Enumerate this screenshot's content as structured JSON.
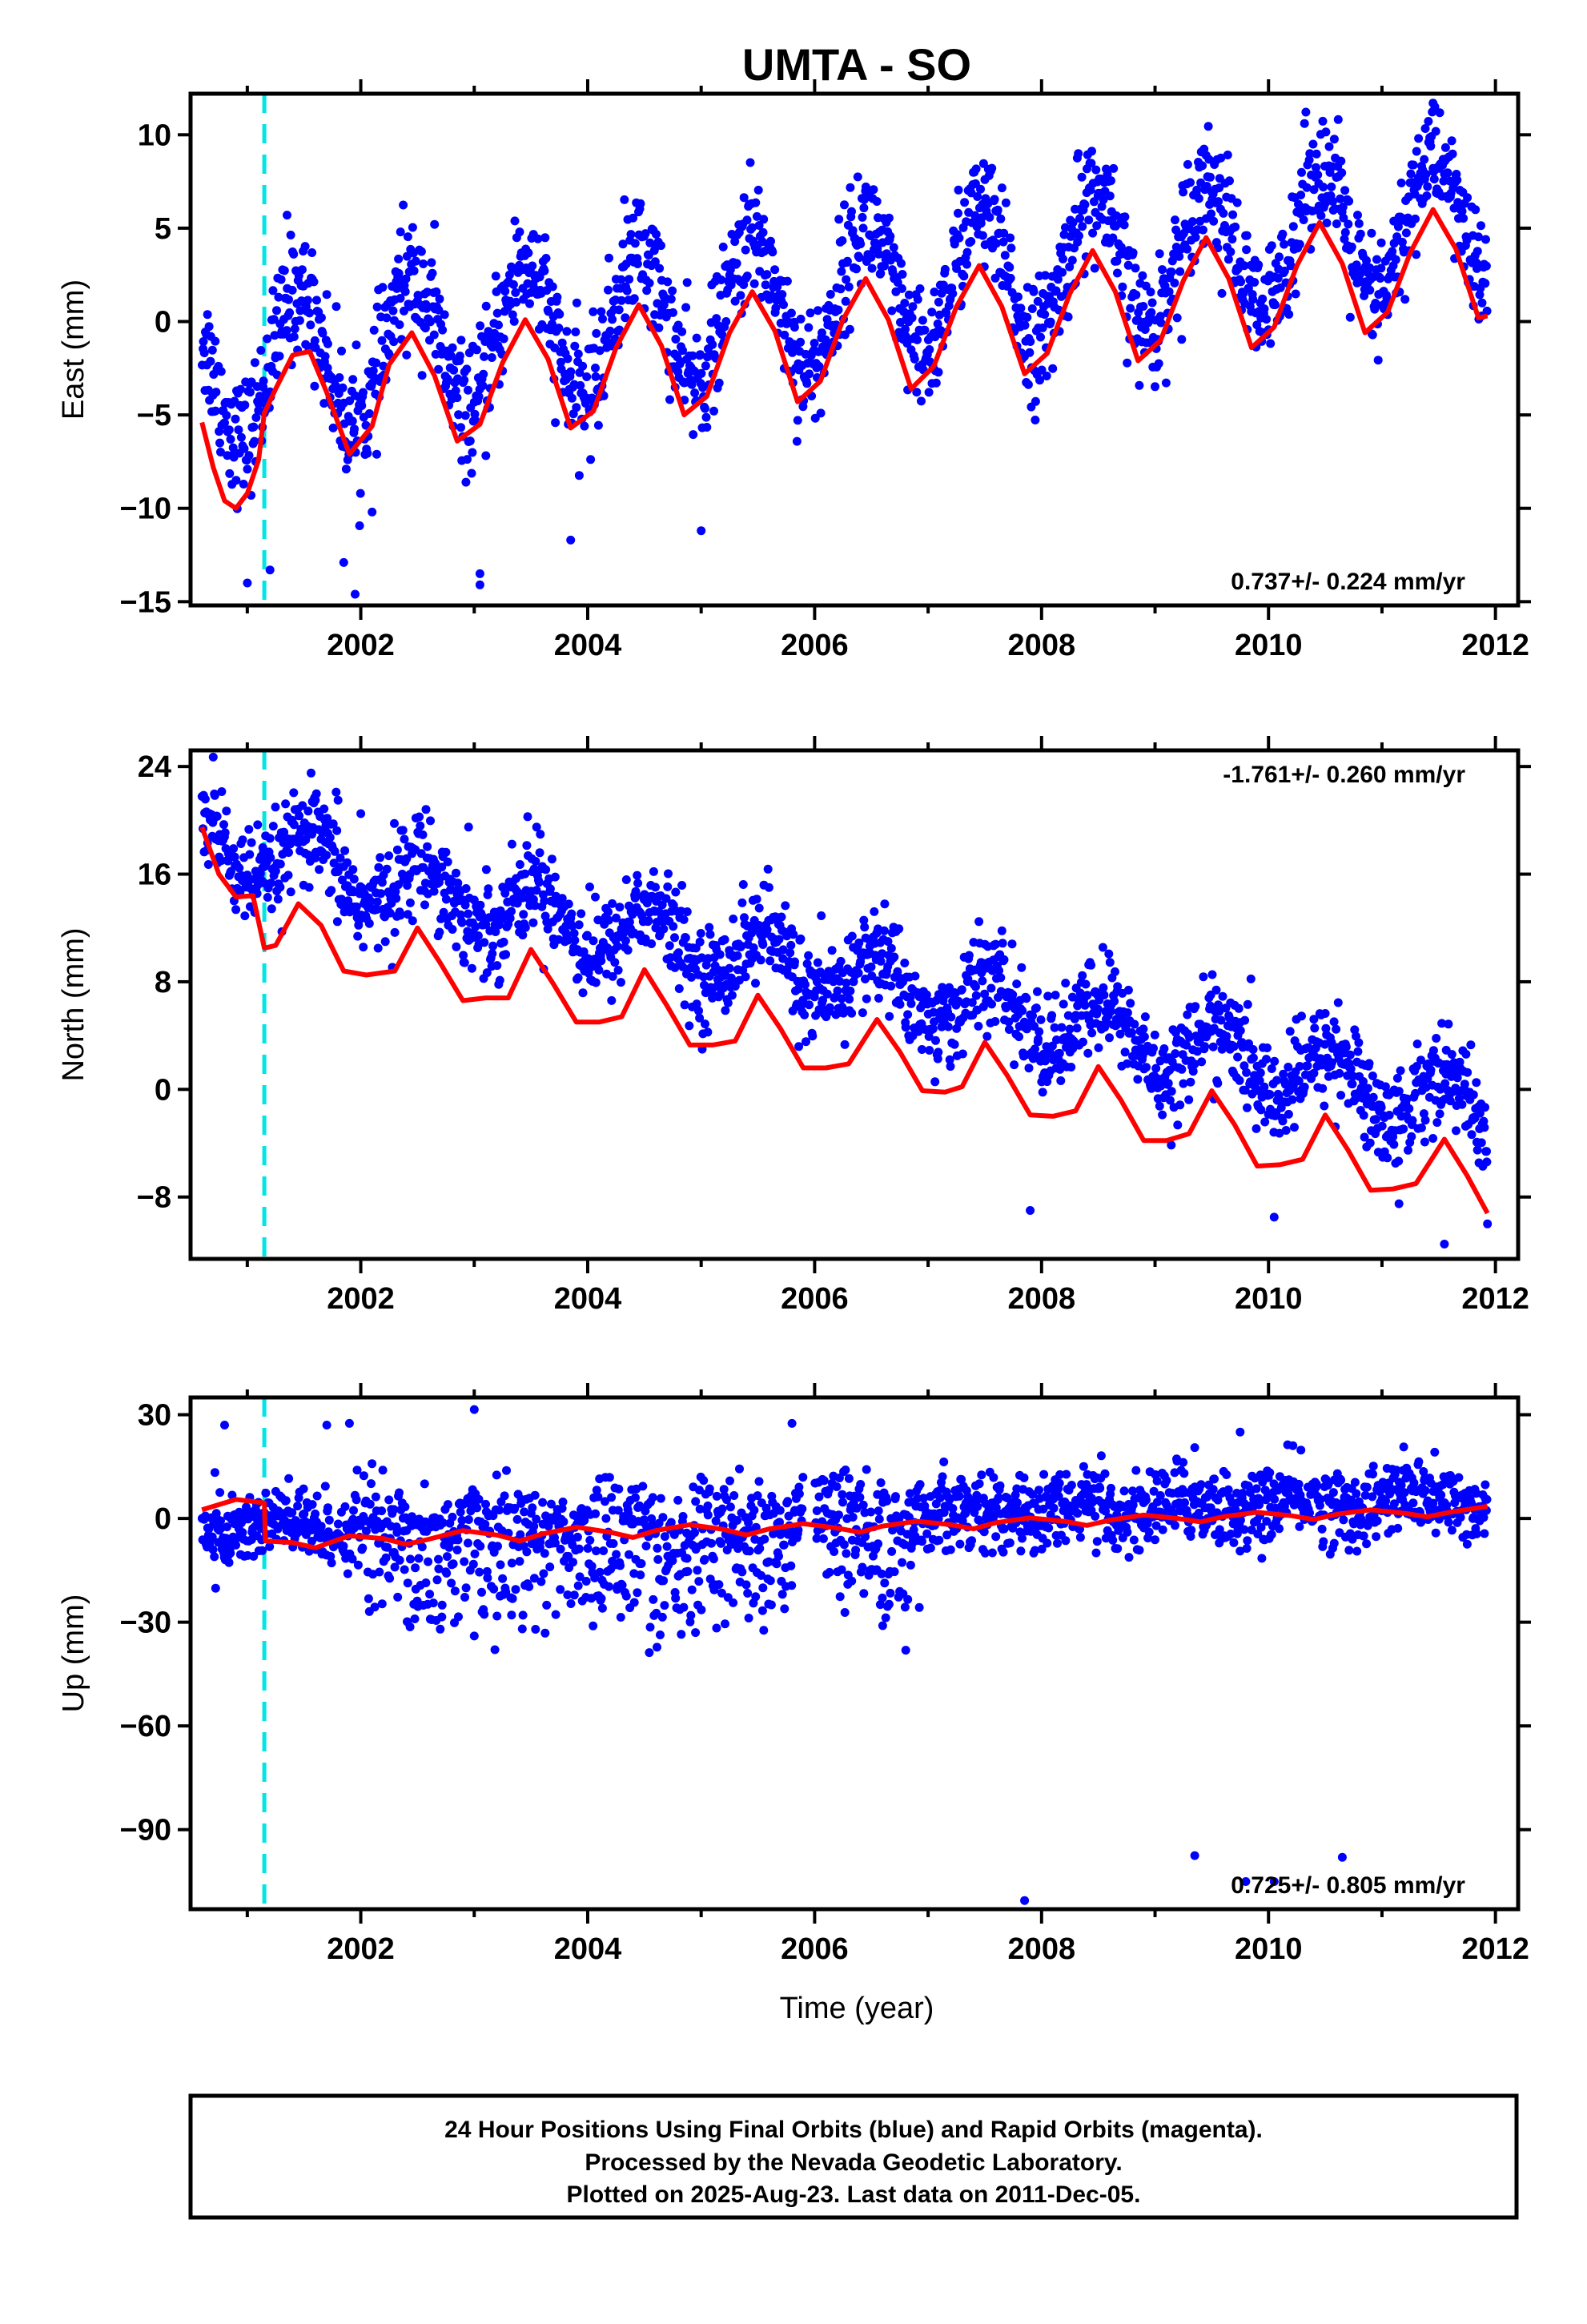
{
  "chart_data": {
    "type": "scatter",
    "title": "UMTA - SO",
    "xlabel": "Time (year)",
    "x_ticks": [
      "2002",
      "2004",
      "2006",
      "2008",
      "2010",
      "2012"
    ],
    "xlim": [
      2000.5,
      2012.2
    ],
    "event_line_x": 2001.15,
    "colors": {
      "points": "#0000ff",
      "fit": "#ff0000",
      "event": "#00e5e5"
    },
    "panels": [
      {
        "ylabel": "East (mm)",
        "ylim": [
          -15.2,
          12.2
        ],
        "y_ticks": [
          "10",
          "5",
          "0",
          "−5",
          "−10",
          "−15"
        ],
        "y_tick_values": [
          10,
          5,
          0,
          -5,
          -10,
          -15
        ],
        "rate_label": "0.737+/- 0.224 mm/yr",
        "rate_pos": "bottom-right",
        "fit_x": [
          2000.6,
          2000.7,
          2000.8,
          2000.9,
          2001.0,
          2001.1,
          2001.15,
          2001.25,
          2001.4,
          2001.55,
          2001.7,
          2001.9,
          2002.1,
          2002.25,
          2002.45,
          2002.65,
          2002.85,
          2003.05,
          2003.25,
          2003.45,
          2003.65,
          2003.85,
          2004.05,
          2004.25,
          2004.45,
          2004.65,
          2004.85,
          2005.05,
          2005.25,
          2005.45,
          2005.65,
          2005.85,
          2006.05,
          2006.25,
          2006.45,
          2006.65,
          2006.85,
          2007.05,
          2007.25,
          2007.45,
          2007.65,
          2007.85,
          2008.05,
          2008.25,
          2008.45,
          2008.65,
          2008.85,
          2009.05,
          2009.25,
          2009.45,
          2009.65,
          2009.85,
          2010.05,
          2010.25,
          2010.45,
          2010.65,
          2010.85,
          2011.05,
          2011.25,
          2011.45,
          2011.65,
          2011.85,
          2011.93
        ],
        "fit_y": [
          -5.4,
          -7.8,
          -9.6,
          -10.0,
          -9.2,
          -7.4,
          -4.9,
          -3.6,
          -1.8,
          -1.6,
          -3.8,
          -7.1,
          -5.6,
          -2.3,
          -0.6,
          -2.9,
          -6.4,
          -5.5,
          -2.2,
          0.1,
          -2.0,
          -5.7,
          -4.8,
          -1.4,
          0.9,
          -1.3,
          -5.0,
          -4.0,
          -0.6,
          1.6,
          -0.5,
          -4.3,
          -3.2,
          0.1,
          2.3,
          0.1,
          -3.6,
          -2.4,
          0.8,
          3.0,
          0.8,
          -2.8,
          -1.7,
          1.5,
          3.8,
          1.6,
          -2.1,
          -1.0,
          2.2,
          4.5,
          2.3,
          -1.4,
          -0.3,
          3.0,
          5.3,
          3.1,
          -0.6,
          0.5,
          3.7,
          6.0,
          3.9,
          0.2,
          0.3
        ],
        "band": {
          "base": -2.8,
          "slope": 0.737,
          "amp": 3.7,
          "phase": 2001.2,
          "noise": 1.6,
          "min_x": 2000.6,
          "max_x": 2011.93
        },
        "outliers": [
          [
            2011.45,
            11.7
          ],
          [
            2009.45,
            8.9
          ],
          [
            2011.5,
            8.2
          ],
          [
            2001.35,
            5.7
          ],
          [
            2002.35,
            4.8
          ],
          [
            2002.65,
            5.2
          ],
          [
            2003.4,
            4.8
          ],
          [
            2001.85,
            -12.9
          ],
          [
            2001.95,
            -14.6
          ],
          [
            2003.05,
            -13.5
          ],
          [
            2003.05,
            -14.1
          ],
          [
            2002.1,
            -10.2
          ],
          [
            2001.0,
            -14.0
          ],
          [
            2001.2,
            -13.3
          ],
          [
            2003.85,
            -11.7
          ],
          [
            2005.0,
            -11.2
          ],
          [
            2007.5,
            7.6
          ]
        ]
      },
      {
        "ylabel": "North (mm)",
        "ylim": [
          -12.6,
          25.2
        ],
        "y_ticks": [
          "24",
          "16",
          "8",
          "0",
          "−8"
        ],
        "y_tick_values": [
          24,
          16,
          8,
          0,
          -8
        ],
        "rate_label": "-1.761+/- 0.260 mm/yr",
        "rate_pos": "top-right",
        "fit_x": [
          2000.6,
          2000.75,
          2000.9,
          2001.05,
          2001.15,
          2001.25,
          2001.45,
          2001.65,
          2001.85,
          2002.05,
          2002.3,
          2002.5,
          2002.7,
          2002.9,
          2003.1,
          2003.3,
          2003.5,
          2003.7,
          2003.9,
          2004.1,
          2004.3,
          2004.5,
          2004.7,
          2004.9,
          2005.1,
          2005.3,
          2005.5,
          2005.7,
          2005.9,
          2006.1,
          2006.3,
          2006.55,
          2006.75,
          2006.95,
          2007.15,
          2007.3,
          2007.5,
          2007.7,
          2007.9,
          2008.1,
          2008.3,
          2008.5,
          2008.7,
          2008.9,
          2009.1,
          2009.3,
          2009.5,
          2009.7,
          2009.9,
          2010.1,
          2010.3,
          2010.5,
          2010.7,
          2010.9,
          2011.1,
          2011.3,
          2011.55,
          2011.75,
          2011.93
        ],
        "fit_y": [
          19.5,
          16.0,
          14.3,
          14.4,
          10.5,
          10.7,
          13.8,
          12.2,
          8.8,
          8.5,
          8.8,
          12.0,
          9.4,
          6.6,
          6.8,
          6.8,
          10.4,
          7.8,
          5.0,
          5.0,
          5.4,
          8.9,
          6.2,
          3.3,
          3.3,
          3.6,
          7.0,
          4.5,
          1.6,
          1.6,
          1.9,
          5.2,
          2.8,
          -0.1,
          -0.2,
          0.2,
          3.5,
          1.0,
          -1.9,
          -2.0,
          -1.6,
          1.7,
          -0.8,
          -3.8,
          -3.8,
          -3.3,
          -0.1,
          -2.6,
          -5.7,
          -5.6,
          -5.2,
          -1.9,
          -4.5,
          -7.5,
          -7.4,
          -7.0,
          -3.7,
          -6.4,
          -9.2
        ],
        "band": {
          "base": 18.3,
          "slope": -1.761,
          "amp": 2.2,
          "phase": 2001.3,
          "noise": 1.8,
          "min_x": 2000.6,
          "max_x": 2011.93
        },
        "outliers": [
          [
            2000.7,
            24.7
          ],
          [
            2001.6,
            21.5
          ],
          [
            2001.8,
            21.5
          ],
          [
            2002.0,
            20.5
          ],
          [
            2002.95,
            19.5
          ],
          [
            2003.55,
            19.5
          ],
          [
            2004.6,
            12.0
          ],
          [
            2005.25,
            9.0
          ],
          [
            2006.75,
            7.8
          ],
          [
            2007.9,
            -9.0
          ],
          [
            2010.05,
            -9.5
          ],
          [
            2010.4,
            1.2
          ],
          [
            2011.15,
            -8.5
          ],
          [
            2011.55,
            -11.5
          ],
          [
            2011.93,
            -10.0
          ]
        ]
      },
      {
        "ylabel": "Up (mm)",
        "ylim": [
          -113.0,
          35.0
        ],
        "y_ticks": [
          "30",
          "0",
          "−30",
          "−60",
          "−90"
        ],
        "y_tick_values": [
          30,
          0,
          -30,
          -60,
          -90
        ],
        "rate_label": "0.725+/- 0.805 mm/yr",
        "rate_pos": "bottom-right",
        "fit_x": [
          2000.6,
          2000.9,
          2001.15,
          2001.16,
          2001.4,
          2001.6,
          2001.9,
          2002.2,
          2002.4,
          2002.6,
          2002.9,
          2003.2,
          2003.4,
          2003.6,
          2003.9,
          2004.2,
          2004.4,
          2004.6,
          2004.9,
          2005.2,
          2005.4,
          2005.6,
          2005.9,
          2006.2,
          2006.4,
          2006.6,
          2006.9,
          2007.2,
          2007.4,
          2007.6,
          2007.9,
          2008.2,
          2008.4,
          2008.6,
          2008.9,
          2009.2,
          2009.4,
          2009.6,
          2009.9,
          2010.2,
          2010.4,
          2010.6,
          2010.9,
          2011.2,
          2011.4,
          2011.6,
          2011.93
        ],
        "fit_y": [
          2.5,
          5.5,
          4.5,
          -6.5,
          -7.0,
          -8.5,
          -5.0,
          -5.8,
          -7.5,
          -6.0,
          -3.5,
          -4.8,
          -6.5,
          -4.5,
          -2.5,
          -4.0,
          -5.5,
          -3.5,
          -1.8,
          -3.2,
          -4.8,
          -3.0,
          -1.5,
          -2.8,
          -4.0,
          -2.2,
          -0.8,
          -1.8,
          -3.0,
          -1.2,
          0.2,
          -0.8,
          -2.0,
          -0.5,
          1.0,
          0.0,
          -1.0,
          0.5,
          1.8,
          0.8,
          -0.3,
          1.2,
          2.5,
          1.5,
          0.5,
          1.8,
          3.5
        ],
        "band": {
          "base": -3.0,
          "slope": 0.725,
          "amp": 2.0,
          "phase": 2001.0,
          "noise": 5.5,
          "min_x": 2000.6,
          "max_x": 2011.93
        },
        "outliers": [
          [
            2003.0,
            31.5
          ],
          [
            2005.8,
            27.5
          ],
          [
            2001.9,
            27.5
          ],
          [
            2001.7,
            27.0
          ],
          [
            2000.8,
            27.0
          ],
          [
            2007.85,
            -110.5
          ],
          [
            2009.35,
            -97.5
          ],
          [
            2009.8,
            -105.0
          ],
          [
            2010.05,
            -105.0
          ],
          [
            2010.65,
            -98.0
          ],
          [
            2009.35,
            20.5
          ],
          [
            2009.75,
            25.0
          ],
          [
            2002.7,
            -32.0
          ],
          [
            2003.0,
            -34.0
          ],
          [
            2004.95,
            -33.0
          ],
          [
            2006.6,
            -31.0
          ]
        ]
      }
    ],
    "footer": [
      "24 Hour Positions Using Final Orbits (blue) and Rapid Orbits (magenta).",
      "Processed by the Nevada Geodetic Laboratory.",
      "Plotted on 2025-Aug-23. Last data on 2011-Dec-05."
    ]
  }
}
